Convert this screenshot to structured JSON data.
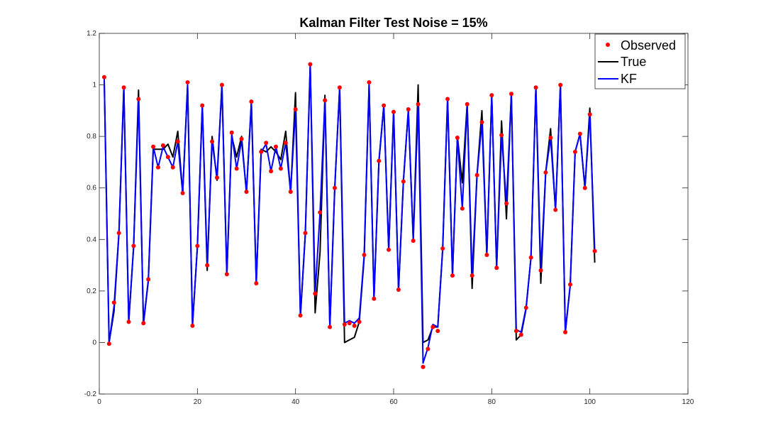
{
  "chart_data": {
    "type": "line",
    "title": "Kalman Filter Test Noise = 15%",
    "xlabel": "",
    "ylabel": "",
    "xlim": [
      0,
      120
    ],
    "ylim": [
      -0.2,
      1.2
    ],
    "xticks": [
      0,
      20,
      40,
      60,
      80,
      100,
      120
    ],
    "yticks": [
      -0.2,
      0,
      0.2,
      0.4,
      0.6,
      0.8,
      1,
      1.2
    ],
    "xtick_labels": [
      "0",
      "20",
      "40",
      "60",
      "80",
      "100",
      "120"
    ],
    "ytick_labels": [
      "-0.2",
      "0",
      "0.2",
      "0.4",
      "0.6",
      "0.8",
      "1",
      "1.2"
    ],
    "grid": false,
    "legend_position": "top-right",
    "x": [
      1,
      2,
      3,
      4,
      5,
      6,
      7,
      8,
      9,
      10,
      11,
      12,
      13,
      14,
      15,
      16,
      17,
      18,
      19,
      20,
      21,
      22,
      23,
      24,
      25,
      26,
      27,
      28,
      29,
      30,
      31,
      32,
      33,
      34,
      35,
      36,
      37,
      38,
      39,
      40,
      41,
      42,
      43,
      44,
      45,
      46,
      47,
      48,
      49,
      50,
      51,
      52,
      53,
      54,
      55,
      56,
      57,
      58,
      59,
      60,
      61,
      62,
      63,
      64,
      65,
      66,
      67,
      68,
      69,
      70,
      71,
      72,
      73,
      74,
      75,
      76,
      77,
      78,
      79,
      80,
      81,
      82,
      83,
      84,
      85,
      86,
      87,
      88,
      89,
      90,
      91,
      92,
      93,
      94,
      95,
      96,
      97,
      98,
      99,
      100,
      101
    ],
    "series": [
      {
        "name": "Observed",
        "style": "markers",
        "color": "#ff0000",
        "values": [
          1.03,
          -0.005,
          0.155,
          0.425,
          0.99,
          0.08,
          0.375,
          0.945,
          0.075,
          0.245,
          0.76,
          0.68,
          0.765,
          0.72,
          0.68,
          0.78,
          0.58,
          1.01,
          0.065,
          0.375,
          0.92,
          0.3,
          0.78,
          0.64,
          1.0,
          0.265,
          0.815,
          0.675,
          0.79,
          0.585,
          0.935,
          0.23,
          0.74,
          0.775,
          0.665,
          0.76,
          0.675,
          0.775,
          0.585,
          0.905,
          0.105,
          0.425,
          1.08,
          0.19,
          0.505,
          0.94,
          0.06,
          0.6,
          0.99,
          0.07,
          0.075,
          0.065,
          0.08,
          0.34,
          1.01,
          0.17,
          0.705,
          0.92,
          0.36,
          0.895,
          0.205,
          0.625,
          0.905,
          0.395,
          0.925,
          -0.095,
          -0.025,
          0.06,
          0.045,
          0.365,
          0.945,
          0.26,
          0.795,
          0.52,
          0.925,
          0.26,
          0.65,
          0.855,
          0.34,
          0.96,
          0.29,
          0.805,
          0.54,
          0.965,
          0.045,
          0.03,
          0.135,
          0.33,
          0.99,
          0.28,
          0.66,
          0.795,
          0.515,
          1.0,
          0.04,
          0.225,
          0.74,
          0.81,
          0.6,
          0.885,
          0.355
        ]
      },
      {
        "name": "True",
        "style": "line",
        "color": "#000000",
        "values": [
          1.03,
          0.0,
          0.12,
          0.42,
          0.99,
          0.08,
          0.37,
          0.98,
          0.07,
          0.24,
          0.75,
          0.75,
          0.75,
          0.77,
          0.72,
          0.82,
          0.58,
          1.0,
          0.07,
          0.37,
          0.92,
          0.28,
          0.8,
          0.63,
          1.0,
          0.26,
          0.8,
          0.72,
          0.8,
          0.58,
          0.93,
          0.23,
          0.75,
          0.74,
          0.76,
          0.74,
          0.71,
          0.82,
          0.58,
          0.97,
          0.1,
          0.42,
          1.08,
          0.115,
          0.35,
          0.96,
          0.06,
          0.6,
          0.99,
          0.0,
          0.01,
          0.02,
          0.08,
          0.33,
          1.0,
          0.17,
          0.7,
          0.92,
          0.36,
          0.9,
          0.2,
          0.63,
          0.9,
          0.4,
          1.0,
          0.0,
          0.01,
          0.06,
          0.06,
          0.36,
          0.95,
          0.26,
          0.8,
          0.62,
          0.93,
          0.21,
          0.65,
          0.9,
          0.34,
          0.96,
          0.29,
          0.86,
          0.48,
          0.97,
          0.01,
          0.03,
          0.13,
          0.33,
          0.99,
          0.23,
          0.66,
          0.83,
          0.51,
          1.0,
          0.04,
          0.22,
          0.74,
          0.81,
          0.6,
          0.91,
          0.31
        ]
      },
      {
        "name": "KF",
        "style": "line",
        "color": "#0000ff",
        "values": [
          1.03,
          0.0,
          0.14,
          0.425,
          0.99,
          0.08,
          0.375,
          0.945,
          0.075,
          0.245,
          0.76,
          0.68,
          0.76,
          0.72,
          0.68,
          0.78,
          0.58,
          1.0,
          0.065,
          0.375,
          0.92,
          0.3,
          0.78,
          0.64,
          1.0,
          0.265,
          0.81,
          0.675,
          0.785,
          0.585,
          0.935,
          0.23,
          0.74,
          0.77,
          0.665,
          0.76,
          0.675,
          0.775,
          0.585,
          0.905,
          0.105,
          0.425,
          1.075,
          0.19,
          0.505,
          0.94,
          0.06,
          0.6,
          0.99,
          0.075,
          0.085,
          0.075,
          0.095,
          0.34,
          1.005,
          0.17,
          0.705,
          0.92,
          0.36,
          0.895,
          0.205,
          0.625,
          0.905,
          0.395,
          0.925,
          -0.08,
          -0.02,
          0.07,
          0.06,
          0.365,
          0.945,
          0.26,
          0.795,
          0.52,
          0.925,
          0.26,
          0.65,
          0.855,
          0.34,
          0.96,
          0.29,
          0.805,
          0.54,
          0.965,
          0.05,
          0.04,
          0.135,
          0.33,
          0.99,
          0.28,
          0.66,
          0.795,
          0.515,
          1.0,
          0.04,
          0.225,
          0.74,
          0.81,
          0.6,
          0.885,
          0.355
        ]
      }
    ]
  }
}
